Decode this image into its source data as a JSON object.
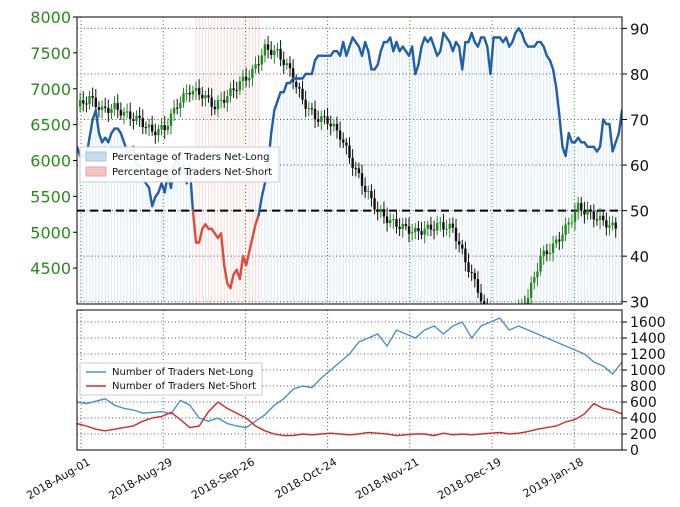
{
  "chart_data": [
    {
      "id": "top",
      "type": "line",
      "title": "",
      "xlabel": "",
      "ylabel": "",
      "x_ticks": [
        "2018-Aug-01",
        "2018-Aug-29",
        "2018-Sep-26",
        "2018-Oct-24",
        "2018-Nov-21",
        "2018-Dec-19",
        "2019-Jan-18"
      ],
      "price_axis": {
        "ticks": [
          4500,
          5000,
          5500,
          6000,
          6500,
          7000,
          7500,
          8000
        ],
        "ylim": [
          4000,
          8000
        ],
        "color": "#2a8a1a"
      },
      "percent_axis": {
        "ticks": [
          30,
          40,
          50,
          60,
          70,
          80,
          90
        ],
        "ylim": [
          29.5,
          92.5
        ]
      },
      "reference_line": {
        "value": 50,
        "axis": "percent",
        "style": "dashed"
      },
      "legend": {
        "placement": "left",
        "entries": [
          {
            "label": "Percentage of Traders Net-Long",
            "color": "#c6dcf0"
          },
          {
            "label": "Percentage of Traders Net-Short",
            "color": "#f4c4c4"
          }
        ]
      },
      "series": [
        {
          "name": "Percentage of Traders Net-Long",
          "role": "sentiment-line",
          "line_color": "#1f5fa8",
          "short_color": "#e04a3a",
          "x": [
            0,
            1,
            2,
            3,
            4,
            5,
            6,
            7,
            8,
            9,
            10,
            11,
            12,
            13,
            14,
            15,
            16,
            17,
            18,
            19,
            20,
            21,
            22,
            23,
            24,
            25,
            26,
            27,
            28,
            29,
            30,
            31,
            32,
            33,
            34,
            35,
            36,
            37,
            38,
            39,
            40,
            41,
            42,
            43,
            44,
            45,
            46,
            47,
            48,
            49,
            50,
            51,
            52,
            53,
            54,
            55,
            56,
            57,
            58,
            59,
            60,
            61,
            62,
            63,
            64,
            65,
            66,
            67,
            68,
            69,
            70,
            71,
            72,
            73,
            74,
            75,
            76,
            77,
            78,
            79,
            80,
            81,
            82,
            83,
            84,
            85,
            86,
            87,
            88,
            89,
            90,
            91,
            92,
            93,
            94,
            95,
            96,
            97,
            98,
            99,
            100,
            101,
            102,
            103,
            104,
            105,
            106,
            107,
            108,
            109,
            110,
            111,
            112,
            113,
            114,
            115,
            116,
            117,
            118,
            119,
            120,
            121,
            122,
            123,
            124,
            125,
            126,
            127,
            128,
            129,
            130,
            131,
            132,
            133,
            134,
            135,
            136,
            137,
            138,
            139,
            140,
            141,
            142,
            143,
            144,
            145,
            146,
            147,
            148,
            149,
            150,
            151,
            152,
            153,
            154,
            155,
            156,
            157,
            158,
            159,
            160,
            161,
            162,
            163,
            164,
            165,
            166,
            167,
            168,
            169,
            170,
            171,
            172,
            173,
            174
          ],
          "values": [
            64,
            62,
            62,
            62,
            66,
            70,
            72,
            67,
            65,
            66,
            65,
            67,
            68,
            68,
            67,
            65,
            63,
            63,
            64,
            60,
            60,
            57,
            56,
            55,
            51,
            53,
            54,
            56,
            54,
            58,
            55,
            60,
            62,
            58,
            60,
            56,
            60,
            50,
            43,
            43,
            46,
            47,
            46,
            46,
            45,
            44,
            45,
            38,
            34,
            33,
            36,
            37,
            35,
            40,
            38,
            41,
            44,
            47,
            49,
            53,
            56,
            60,
            67,
            72,
            74,
            76,
            76,
            78,
            78,
            79,
            79,
            79,
            79,
            80,
            80,
            80,
            83,
            84,
            84,
            84,
            84,
            84,
            85,
            85,
            84,
            87,
            84,
            86,
            88,
            87,
            86,
            84,
            87,
            85,
            81,
            81,
            82,
            85,
            87,
            87,
            88,
            85,
            87,
            85,
            86,
            85,
            84,
            86,
            80,
            82,
            86,
            88,
            87,
            88,
            86,
            84,
            85,
            89,
            88,
            87,
            85,
            87,
            86,
            81,
            87,
            87,
            89,
            87,
            86,
            88,
            88,
            86,
            80,
            88,
            88,
            88,
            87,
            88,
            86,
            87,
            89,
            90,
            89,
            87,
            86,
            86,
            86,
            87,
            87,
            86,
            84,
            83,
            81,
            77,
            71,
            64,
            62,
            67,
            65,
            65,
            66,
            65,
            65,
            64,
            64,
            64,
            63,
            64,
            70,
            69,
            69,
            63,
            65,
            67,
            72
          ]
        },
        {
          "name": "Price",
          "role": "candles",
          "up_color": "#1f8a1f",
          "down_color": "#111111",
          "x": [
            0,
            4,
            8,
            12,
            16,
            20,
            24,
            28,
            32,
            36,
            40,
            44,
            48,
            52,
            56,
            60,
            64,
            68,
            72,
            76,
            80,
            84,
            88,
            92,
            96,
            100,
            104,
            108,
            112,
            116,
            120,
            124,
            128,
            132,
            136,
            140,
            144,
            148,
            152,
            156,
            160,
            164,
            168,
            172
          ],
          "values": [
            6750,
            6870,
            6700,
            6740,
            6630,
            6560,
            6400,
            6450,
            6780,
            6980,
            6920,
            6750,
            6900,
            7080,
            7230,
            7560,
            7500,
            7250,
            6840,
            6600,
            6560,
            6350,
            5950,
            5600,
            5300,
            5150,
            5070,
            5000,
            5050,
            5100,
            5050,
            4600,
            4200,
            3700,
            3800,
            3850,
            4100,
            4650,
            4800,
            5050,
            5350,
            5250,
            5150,
            5050
          ]
        }
      ]
    },
    {
      "id": "bottom",
      "type": "line",
      "title": "",
      "xlabel": "",
      "ylabel": "",
      "yticks": [
        0,
        200,
        400,
        600,
        800,
        1000,
        1200,
        1400,
        1600
      ],
      "ylim": [
        0,
        1750
      ],
      "legend": {
        "placement": "left",
        "entries": [
          {
            "label": "Number of Traders Net-Long",
            "color": "#4a90d0"
          },
          {
            "label": "Number of Traders Net-Short",
            "color": "#d62728"
          }
        ]
      },
      "series": [
        {
          "name": "Number of Traders Net-Long",
          "color": "#4a90d0",
          "x": [
            0,
            3,
            6,
            9,
            12,
            15,
            18,
            21,
            24,
            27,
            30,
            33,
            36,
            39,
            42,
            45,
            48,
            51,
            54,
            57,
            60,
            63,
            66,
            69,
            72,
            75,
            78,
            81,
            84,
            87,
            90,
            93,
            96,
            99,
            102,
            105,
            108,
            111,
            114,
            117,
            120,
            123,
            126,
            129,
            132,
            135,
            138,
            141,
            144,
            147,
            150,
            153,
            156,
            159,
            162,
            165,
            168,
            171,
            174
          ],
          "values": [
            600,
            580,
            610,
            640,
            560,
            520,
            500,
            460,
            470,
            480,
            450,
            620,
            560,
            400,
            360,
            400,
            330,
            300,
            280,
            360,
            440,
            560,
            640,
            760,
            800,
            780,
            900,
            1000,
            1100,
            1200,
            1350,
            1400,
            1450,
            1300,
            1500,
            1450,
            1400,
            1500,
            1550,
            1450,
            1550,
            1600,
            1400,
            1550,
            1600,
            1650,
            1500,
            1550,
            1500,
            1450,
            1400,
            1350,
            1300,
            1250,
            1200,
            1100,
            1050,
            950,
            1100
          ]
        },
        {
          "name": "Number of Traders Net-Short",
          "color": "#d62728",
          "x": [
            0,
            3,
            6,
            9,
            12,
            15,
            18,
            21,
            24,
            27,
            30,
            33,
            36,
            39,
            42,
            45,
            48,
            51,
            54,
            57,
            60,
            63,
            66,
            69,
            72,
            75,
            78,
            81,
            84,
            87,
            90,
            93,
            96,
            99,
            102,
            105,
            108,
            111,
            114,
            117,
            120,
            123,
            126,
            129,
            132,
            135,
            138,
            141,
            144,
            147,
            150,
            153,
            156,
            159,
            162,
            165,
            168,
            171,
            174
          ],
          "values": [
            330,
            300,
            260,
            240,
            260,
            280,
            300,
            360,
            400,
            420,
            470,
            380,
            280,
            300,
            480,
            600,
            520,
            460,
            400,
            300,
            240,
            200,
            180,
            180,
            200,
            190,
            200,
            210,
            200,
            190,
            200,
            220,
            210,
            200,
            180,
            190,
            200,
            200,
            180,
            210,
            190,
            200,
            190,
            200,
            210,
            220,
            200,
            210,
            230,
            260,
            280,
            300,
            350,
            380,
            450,
            580,
            520,
            500,
            450
          ]
        }
      ]
    }
  ]
}
